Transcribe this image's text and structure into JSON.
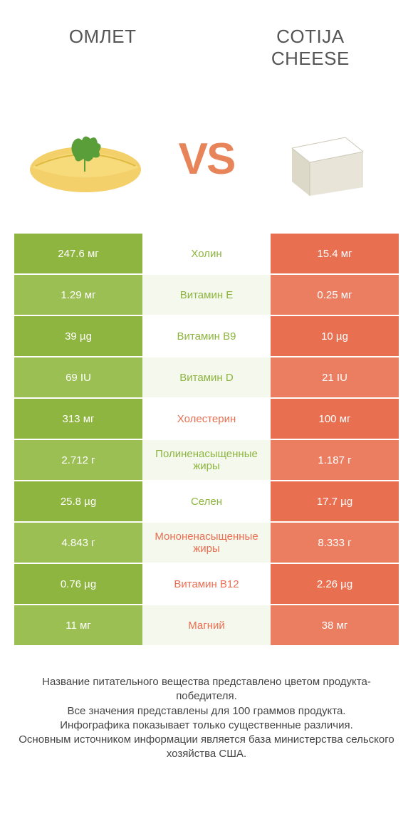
{
  "colors": {
    "left": "#8eb53f",
    "right": "#e96f51",
    "left_alt": "#9bbf53",
    "right_alt": "#eb7d61",
    "mid_bg_even": "#f4f8ed",
    "mid_bg_odd": "#ffffff",
    "vs": "#e8845a",
    "title": "#555555",
    "footnote": "#444444"
  },
  "titles": {
    "left": "Омлет",
    "right": "COTIJA CHEESE"
  },
  "vs_label": "VS",
  "rows": [
    {
      "left": "247.6 мг",
      "label": "Холин",
      "right": "15.4 мг",
      "winner": "left"
    },
    {
      "left": "1.29 мг",
      "label": "Витамин E",
      "right": "0.25 мг",
      "winner": "left"
    },
    {
      "left": "39 µg",
      "label": "Витамин B9",
      "right": "10 µg",
      "winner": "left"
    },
    {
      "left": "69 IU",
      "label": "Витамин D",
      "right": "21 IU",
      "winner": "left"
    },
    {
      "left": "313 мг",
      "label": "Холестерин",
      "right": "100 мг",
      "winner": "right"
    },
    {
      "left": "2.712 г",
      "label": "Полиненасыщенные жиры",
      "right": "1.187 г",
      "winner": "left"
    },
    {
      "left": "25.8 µg",
      "label": "Селен",
      "right": "17.7 µg",
      "winner": "left"
    },
    {
      "left": "4.843 г",
      "label": "Мононенасыщенные жиры",
      "right": "8.333 г",
      "winner": "right"
    },
    {
      "left": "0.76 µg",
      "label": "Витамин B12",
      "right": "2.26 µg",
      "winner": "right"
    },
    {
      "left": "11 мг",
      "label": "Магний",
      "right": "38 мг",
      "winner": "right"
    }
  ],
  "footnote": "Название питательного вещества представлено цветом продукта-победителя.\nВсе значения представлены для 100 граммов продукта.\nИнфографика показывает только существенные различия.\nОсновным источником информации является база министерства сельского хозяйства США."
}
